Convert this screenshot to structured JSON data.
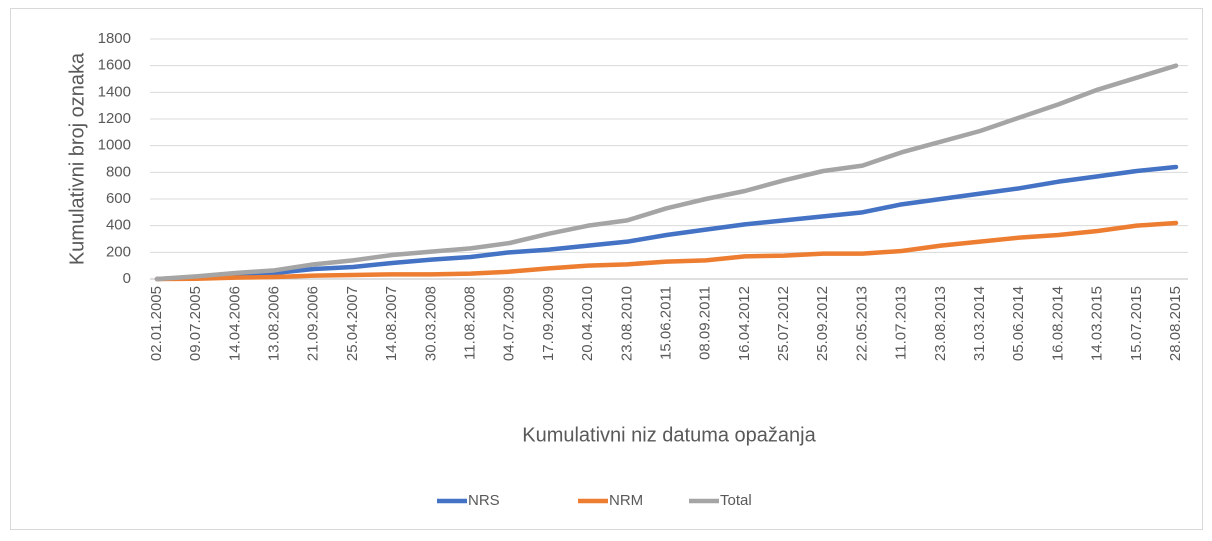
{
  "chart_data": {
    "type": "line",
    "x_label": "Kumulativni niz datuma opažanja",
    "y_label": "Kumulativni broj oznaka",
    "categories": [
      "02.01.2005",
      "09.07.2005",
      "14.04.2006",
      "13.08.2006",
      "21.09.2006",
      "25.04.2007",
      "14.08.2007",
      "30.03.2008",
      "11.08.2008",
      "04.07.2009",
      "17.09.2009",
      "20.04.2010",
      "23.08.2010",
      "15.06.2011",
      "08.09.2011",
      "16.04.2012",
      "25.07.2012",
      "25.09.2012",
      "22.05.2013",
      "11.07.2013",
      "23.08.2013",
      "31.03.2014",
      "05.06.2014",
      "16.08.2014",
      "14.03.2015",
      "15.07.2015",
      "28.08.2015"
    ],
    "series": [
      {
        "name": "NRS",
        "color": "#4472c4",
        "values": [
          0,
          12,
          30,
          45,
          75,
          90,
          120,
          145,
          165,
          200,
          220,
          250,
          280,
          330,
          370,
          410,
          440,
          470,
          500,
          560,
          600,
          640,
          680,
          730,
          770,
          810,
          840
        ]
      },
      {
        "name": "NRM",
        "color": "#ed7d31",
        "values": [
          0,
          2,
          10,
          15,
          25,
          30,
          35,
          35,
          40,
          55,
          80,
          100,
          110,
          130,
          140,
          170,
          175,
          190,
          190,
          210,
          250,
          280,
          310,
          330,
          360,
          400,
          420
        ]
      },
      {
        "name": "Total",
        "color": "#a5a5a5",
        "values": [
          0,
          20,
          45,
          65,
          110,
          140,
          180,
          205,
          230,
          270,
          340,
          400,
          440,
          530,
          600,
          660,
          740,
          810,
          850,
          950,
          1030,
          1110,
          1210,
          1310,
          1420,
          1510,
          1600
        ]
      }
    ],
    "ylim": [
      0,
      1800
    ],
    "yticks": [
      0,
      200,
      400,
      600,
      800,
      1000,
      1200,
      1400,
      1600,
      1800
    ],
    "grid": true,
    "legend": "bottom"
  }
}
